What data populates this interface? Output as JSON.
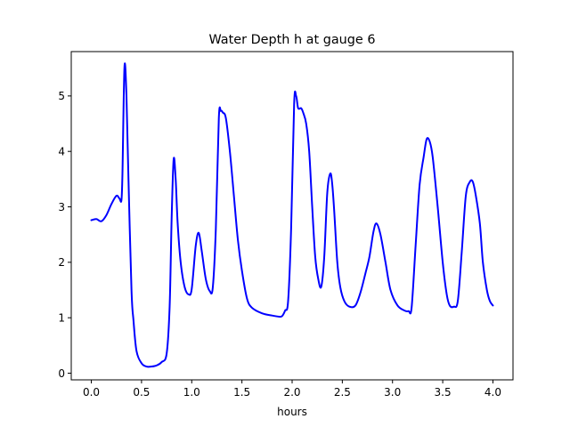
{
  "chart_data": {
    "type": "line",
    "title": "Water Depth h at gauge 6",
    "xlabel": "hours",
    "ylabel": "",
    "xlim": [
      -0.2,
      4.2
    ],
    "ylim": [
      -0.12,
      5.8
    ],
    "xticks": [
      0.0,
      0.5,
      1.0,
      1.5,
      2.0,
      2.5,
      3.0,
      3.5,
      4.0
    ],
    "xtick_labels": [
      "0.0",
      "0.5",
      "1.0",
      "1.5",
      "2.0",
      "2.5",
      "3.0",
      "3.5",
      "4.0"
    ],
    "yticks": [
      0,
      1,
      2,
      3,
      4,
      5
    ],
    "ytick_labels": [
      "0",
      "1",
      "2",
      "3",
      "4",
      "5"
    ],
    "grid": false,
    "series": [
      {
        "color": "#0000ff",
        "x": [
          0.0,
          0.05,
          0.1,
          0.15,
          0.2,
          0.25,
          0.28,
          0.3,
          0.31,
          0.33,
          0.35,
          0.37,
          0.4,
          0.42,
          0.45,
          0.5,
          0.55,
          0.6,
          0.65,
          0.7,
          0.75,
          0.78,
          0.8,
          0.82,
          0.84,
          0.86,
          0.89,
          0.93,
          0.97,
          1.0,
          1.04,
          1.07,
          1.1,
          1.14,
          1.18,
          1.21,
          1.24,
          1.27,
          1.29,
          1.31,
          1.34,
          1.38,
          1.42,
          1.46,
          1.5,
          1.55,
          1.6,
          1.7,
          1.8,
          1.87,
          1.9,
          1.93,
          1.96,
          1.99,
          2.02,
          2.04,
          2.06,
          2.09,
          2.11,
          2.14,
          2.17,
          2.2,
          2.23,
          2.26,
          2.29,
          2.32,
          2.35,
          2.38,
          2.4,
          2.42,
          2.45,
          2.48,
          2.52,
          2.57,
          2.63,
          2.68,
          2.73,
          2.77,
          2.81,
          2.84,
          2.88,
          2.93,
          2.98,
          3.05,
          3.12,
          3.16,
          3.19,
          3.23,
          3.27,
          3.31,
          3.34,
          3.37,
          3.4,
          3.45,
          3.5,
          3.54,
          3.57,
          3.61,
          3.65,
          3.69,
          3.73,
          3.77,
          3.8,
          3.83,
          3.87,
          3.9,
          3.94,
          3.97,
          4.0
        ],
        "y": [
          2.76,
          2.78,
          2.74,
          2.85,
          3.05,
          3.2,
          3.15,
          3.12,
          3.6,
          5.52,
          5.0,
          3.5,
          1.5,
          0.95,
          0.4,
          0.18,
          0.12,
          0.12,
          0.14,
          0.2,
          0.35,
          1.2,
          2.8,
          3.86,
          3.5,
          2.7,
          2.0,
          1.55,
          1.42,
          1.52,
          2.3,
          2.53,
          2.2,
          1.7,
          1.48,
          1.55,
          2.6,
          4.6,
          4.73,
          4.7,
          4.6,
          4.0,
          3.2,
          2.4,
          1.85,
          1.35,
          1.18,
          1.08,
          1.04,
          1.02,
          1.03,
          1.13,
          1.3,
          2.6,
          4.85,
          5.0,
          4.78,
          4.78,
          4.7,
          4.5,
          4.0,
          3.0,
          2.1,
          1.7,
          1.56,
          2.1,
          3.25,
          3.6,
          3.4,
          2.9,
          2.0,
          1.55,
          1.3,
          1.2,
          1.22,
          1.45,
          1.8,
          2.1,
          2.55,
          2.7,
          2.5,
          2.0,
          1.5,
          1.22,
          1.13,
          1.12,
          1.18,
          2.3,
          3.4,
          3.9,
          4.22,
          4.18,
          3.9,
          3.0,
          2.0,
          1.42,
          1.22,
          1.2,
          1.3,
          2.2,
          3.2,
          3.45,
          3.45,
          3.2,
          2.7,
          2.0,
          1.5,
          1.3,
          1.22
        ]
      }
    ]
  }
}
